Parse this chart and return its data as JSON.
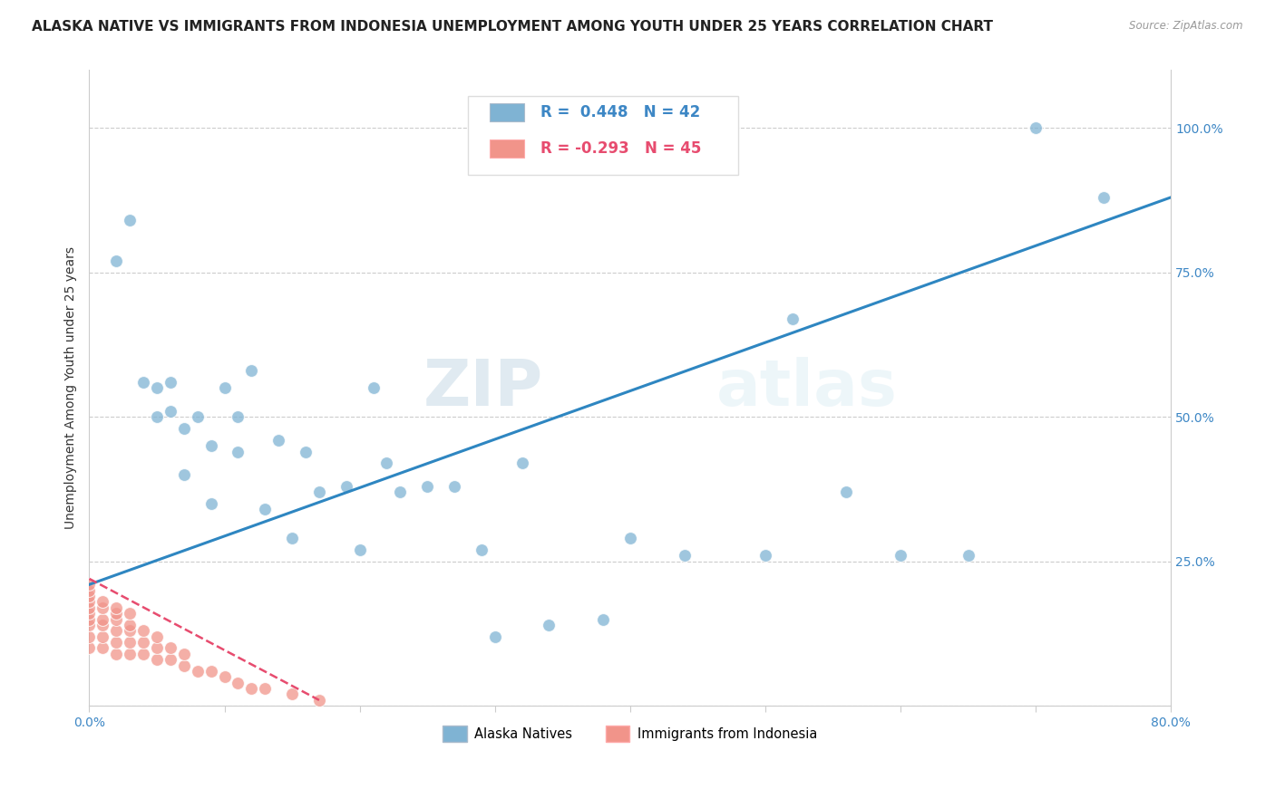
{
  "title": "ALASKA NATIVE VS IMMIGRANTS FROM INDONESIA UNEMPLOYMENT AMONG YOUTH UNDER 25 YEARS CORRELATION CHART",
  "source": "Source: ZipAtlas.com",
  "ylabel": "Unemployment Among Youth under 25 years",
  "xlim": [
    0.0,
    0.8
  ],
  "ylim": [
    0.0,
    1.1
  ],
  "xticks": [
    0.0,
    0.1,
    0.2,
    0.3,
    0.4,
    0.5,
    0.6,
    0.7,
    0.8
  ],
  "ytick_positions": [
    0.0,
    0.25,
    0.5,
    0.75,
    1.0
  ],
  "ytick_labels": [
    "",
    "25.0%",
    "50.0%",
    "75.0%",
    "100.0%"
  ],
  "blue_color": "#7FB3D3",
  "pink_color": "#F1948A",
  "trendline_blue": "#2E86C1",
  "trendline_pink": "#E74C6F",
  "watermark_zip": "ZIP",
  "watermark_atlas": "atlas",
  "legend_R_blue": "R =  0.448",
  "legend_N_blue": "N = 42",
  "legend_R_pink": "R = -0.293",
  "legend_N_pink": "N = 45",
  "blue_scatter_x": [
    0.02,
    0.03,
    0.04,
    0.05,
    0.05,
    0.06,
    0.06,
    0.07,
    0.07,
    0.08,
    0.09,
    0.09,
    0.1,
    0.11,
    0.11,
    0.12,
    0.13,
    0.14,
    0.15,
    0.16,
    0.17,
    0.19,
    0.2,
    0.21,
    0.22,
    0.23,
    0.25,
    0.27,
    0.29,
    0.3,
    0.32,
    0.34,
    0.38,
    0.4,
    0.44,
    0.5,
    0.52,
    0.56,
    0.6,
    0.65,
    0.7,
    0.75
  ],
  "blue_scatter_y": [
    0.77,
    0.84,
    0.56,
    0.55,
    0.5,
    0.56,
    0.51,
    0.48,
    0.4,
    0.5,
    0.35,
    0.45,
    0.55,
    0.5,
    0.44,
    0.58,
    0.34,
    0.46,
    0.29,
    0.44,
    0.37,
    0.38,
    0.27,
    0.55,
    0.42,
    0.37,
    0.38,
    0.38,
    0.27,
    0.12,
    0.42,
    0.14,
    0.15,
    0.29,
    0.26,
    0.26,
    0.67,
    0.37,
    0.26,
    0.26,
    1.0,
    0.88
  ],
  "pink_scatter_x": [
    0.0,
    0.0,
    0.0,
    0.0,
    0.0,
    0.0,
    0.0,
    0.0,
    0.0,
    0.0,
    0.01,
    0.01,
    0.01,
    0.01,
    0.01,
    0.01,
    0.02,
    0.02,
    0.02,
    0.02,
    0.02,
    0.02,
    0.03,
    0.03,
    0.03,
    0.03,
    0.03,
    0.04,
    0.04,
    0.04,
    0.05,
    0.05,
    0.05,
    0.06,
    0.06,
    0.07,
    0.07,
    0.08,
    0.09,
    0.1,
    0.11,
    0.12,
    0.13,
    0.15,
    0.17
  ],
  "pink_scatter_y": [
    0.1,
    0.12,
    0.14,
    0.15,
    0.16,
    0.17,
    0.18,
    0.19,
    0.2,
    0.21,
    0.1,
    0.12,
    0.14,
    0.15,
    0.17,
    0.18,
    0.09,
    0.11,
    0.13,
    0.15,
    0.16,
    0.17,
    0.09,
    0.11,
    0.13,
    0.14,
    0.16,
    0.09,
    0.11,
    0.13,
    0.08,
    0.1,
    0.12,
    0.08,
    0.1,
    0.07,
    0.09,
    0.06,
    0.06,
    0.05,
    0.04,
    0.03,
    0.03,
    0.02,
    0.01
  ],
  "blue_trendline_x": [
    0.0,
    0.8
  ],
  "blue_trendline_y": [
    0.21,
    0.88
  ],
  "pink_trendline_x": [
    0.0,
    0.17
  ],
  "pink_trendline_y": [
    0.22,
    0.01
  ],
  "title_fontsize": 11,
  "axis_fontsize": 10,
  "tick_fontsize": 10,
  "legend_fontsize": 12
}
